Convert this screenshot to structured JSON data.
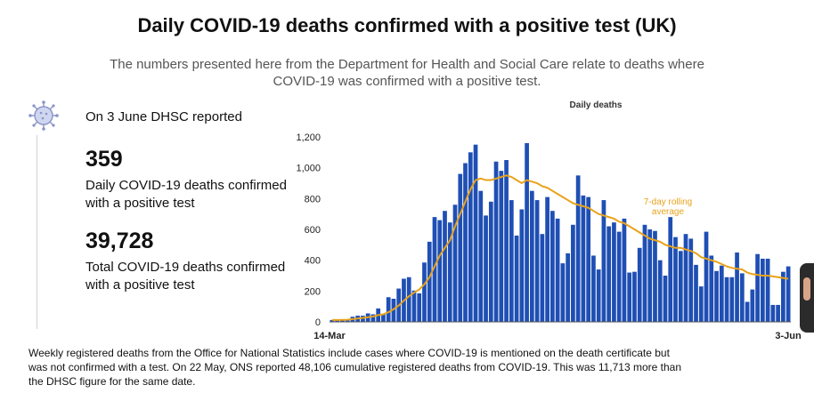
{
  "header": {
    "title": "Daily COVID-19 deaths confirmed with a positive test (UK)",
    "subtitle": "The numbers presented here from the Department for Health and Social Care relate to deaths where COVID-19 was confirmed with a positive test."
  },
  "stats": {
    "reported": "On 3 June DHSC reported",
    "daily_value": "359",
    "daily_label": "Daily COVID-19 deaths confirmed with a positive test",
    "total_value": "39,728",
    "total_label": "Total COVID-19 deaths confirmed with a positive test",
    "icon": "virus-icon"
  },
  "footnote": "Weekly registered deaths from the Office for National Statistics include cases where COVID-19 is mentioned on the death certificate but was not confirmed with a test. On 22 May, ONS reported 48,106 cumulative registered deaths from COVID-19. This was 11,713 more than the DHSC figure for the same date.",
  "colors": {
    "bars": "#1f4fb4",
    "average_line": "#e8a21b",
    "annotation_text": "#e8a21b"
  },
  "chart_data": {
    "type": "bar",
    "title": "Daily deaths",
    "x_tick_labels": [
      "14-Mar",
      "3-Jun"
    ],
    "y_ticks": [
      0,
      200,
      400,
      600,
      800,
      1000,
      1200
    ],
    "y_tick_labels": [
      "0",
      "200",
      "400",
      "600",
      "800",
      "1,000",
      "1,200"
    ],
    "ylim": [
      0,
      1200
    ],
    "grid": false,
    "annotation": "7-day rolling average",
    "series": [
      {
        "kind": "bar",
        "values": [
          12,
          13,
          13,
          14,
          33,
          40,
          40,
          55,
          49,
          87,
          50,
          160,
          150,
          216,
          280,
          290,
          203,
          185,
          385,
          520,
          680,
          660,
          720,
          645,
          760,
          960,
          1030,
          1100,
          1150,
          850,
          690,
          780,
          1040,
          980,
          1050,
          790,
          560,
          730,
          1160,
          850,
          790,
          570,
          810,
          720,
          670,
          380,
          445,
          630,
          950,
          820,
          810,
          430,
          340,
          790,
          620,
          645,
          585,
          670,
          320,
          325,
          480,
          630,
          600,
          590,
          400,
          300,
          680,
          550,
          460,
          570,
          540,
          370,
          230,
          585,
          430,
          330,
          365,
          290,
          290,
          450,
          315,
          130,
          210,
          440,
          410,
          410,
          110,
          110,
          325,
          360
        ]
      },
      {
        "kind": "line",
        "values": [
          12,
          12,
          13,
          14,
          18,
          22,
          26,
          30,
          35,
          44,
          49,
          63,
          82,
          106,
          138,
          166,
          190,
          210,
          243,
          290,
          360,
          430,
          480,
          530,
          620,
          700,
          780,
          860,
          920,
          930,
          920,
          920,
          930,
          940,
          950,
          940,
          920,
          900,
          920,
          910,
          900,
          880,
          870,
          850,
          830,
          810,
          790,
          770,
          760,
          750,
          740,
          720,
          700,
          690,
          680,
          670,
          650,
          640,
          620,
          600,
          580,
          560,
          540,
          530,
          520,
          500,
          490,
          480,
          480,
          470,
          460,
          445,
          420,
          410,
          400,
          390,
          375,
          360,
          350,
          345,
          340,
          320,
          310,
          305,
          300,
          300,
          295,
          290,
          285,
          280
        ]
      }
    ]
  }
}
